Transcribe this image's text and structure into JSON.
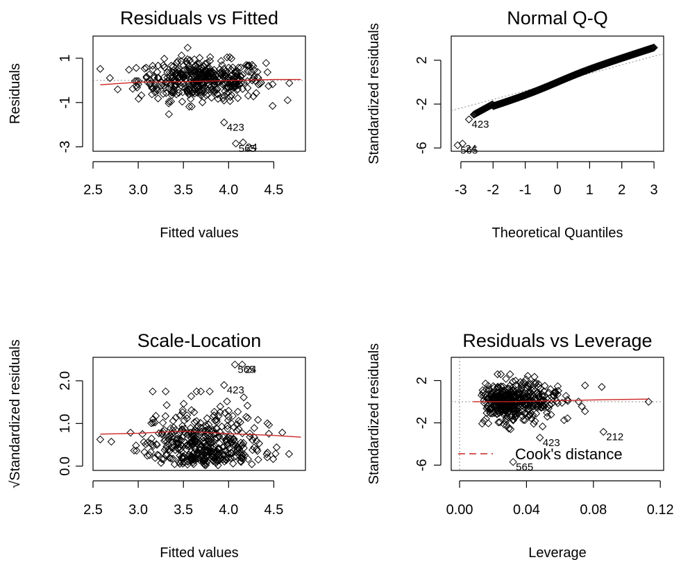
{
  "colors": {
    "smooth_line": "#cc2222",
    "ref_line": "#888888",
    "points": "#000000"
  },
  "chart_data": [
    {
      "id": "residuals-vs-fitted",
      "type": "scatter",
      "title": "Residuals vs Fitted",
      "xlabel": "Fitted values",
      "ylabel": "Residuals",
      "xlim": [
        2.5,
        4.85
      ],
      "ylim": [
        -3.2,
        2.0
      ],
      "xticks": [
        2.5,
        3.0,
        3.5,
        4.0,
        4.5
      ],
      "xtick_labels": [
        "2.5",
        "3.0",
        "3.5",
        "4.0",
        "4.5"
      ],
      "yticks": [
        1,
        -1,
        -3
      ],
      "ytick_labels": [
        "1",
        "-1",
        "-3"
      ],
      "ref_line": {
        "y": 0,
        "style": "dotted"
      },
      "smooth_line": [
        [
          2.58,
          -0.2
        ],
        [
          3.0,
          -0.08
        ],
        [
          3.5,
          -0.06
        ],
        [
          4.0,
          -0.01
        ],
        [
          4.5,
          0.04
        ],
        [
          4.8,
          0.04
        ]
      ],
      "labeled_points": [
        {
          "x": 3.95,
          "y": -1.9,
          "label": "423"
        },
        {
          "x": 4.08,
          "y": -2.85,
          "label": "565"
        },
        {
          "x": 4.16,
          "y": -2.8,
          "label": "24"
        }
      ]
    },
    {
      "id": "normal-qq",
      "type": "scatter",
      "title": "Normal Q-Q",
      "xlabel": "Theoretical Quantiles",
      "ylabel": "Standardized residuals",
      "xlim": [
        -3.3,
        3.3
      ],
      "ylim": [
        -6.3,
        4.2
      ],
      "xticks": [
        -3,
        -2,
        -1,
        0,
        1,
        2,
        3
      ],
      "xtick_labels": [
        "-3",
        "-2",
        "-1",
        "0",
        "1",
        "2",
        "3"
      ],
      "yticks": [
        2,
        -2,
        -6
      ],
      "ytick_labels": [
        "2",
        "-2",
        "-6"
      ],
      "ref_line": {
        "points": [
          [
            -3.3,
            -2.6
          ],
          [
            3.3,
            2.6
          ]
        ],
        "style": "dotted"
      },
      "labeled_points": [
        {
          "x": -2.75,
          "y": -3.4,
          "label": "423"
        },
        {
          "x": -2.95,
          "y": -5.6,
          "label": "24"
        },
        {
          "x": -3.1,
          "y": -5.75,
          "label": "565"
        }
      ]
    },
    {
      "id": "scale-location",
      "type": "scatter",
      "title": "Scale-Location",
      "xlabel": "Fitted values",
      "ylabel": "√Standardized residuals",
      "xlim": [
        2.5,
        4.85
      ],
      "ylim": [
        -0.1,
        2.55
      ],
      "xticks": [
        2.5,
        3.0,
        3.5,
        4.0,
        4.5
      ],
      "xtick_labels": [
        "2.5",
        "3.0",
        "3.5",
        "4.0",
        "4.5"
      ],
      "yticks": [
        0.0,
        1.0,
        2.0
      ],
      "ytick_labels": [
        "0.0",
        "1.0",
        "2.0"
      ],
      "smooth_line": [
        [
          2.58,
          0.75
        ],
        [
          3.0,
          0.77
        ],
        [
          3.5,
          0.82
        ],
        [
          4.0,
          0.76
        ],
        [
          4.5,
          0.72
        ],
        [
          4.8,
          0.68
        ]
      ],
      "labeled_points": [
        {
          "x": 3.95,
          "y": 1.9,
          "label": "423"
        },
        {
          "x": 4.07,
          "y": 2.38,
          "label": "565"
        },
        {
          "x": 4.15,
          "y": 2.38,
          "label": "24"
        }
      ]
    },
    {
      "id": "residuals-vs-leverage",
      "type": "scatter",
      "title": "Residuals vs Leverage",
      "xlabel": "Leverage",
      "ylabel": "Standardized residuals",
      "xlim": [
        -0.005,
        0.122
      ],
      "ylim": [
        -6.5,
        4.2
      ],
      "xticks": [
        0.0,
        0.04,
        0.08,
        0.12
      ],
      "xtick_labels": [
        "0.00",
        "0.04",
        "0.08",
        "0.12"
      ],
      "yticks": [
        2,
        -2,
        -6
      ],
      "ytick_labels": [
        "2",
        "-2",
        "-6"
      ],
      "ref_line": {
        "y": 0,
        "style": "dotted",
        "x": 0
      },
      "smooth_line": [
        [
          0.008,
          0.0
        ],
        [
          0.03,
          0.0
        ],
        [
          0.06,
          0.1
        ],
        [
          0.09,
          0.2
        ],
        [
          0.113,
          0.25
        ]
      ],
      "legend": {
        "label": "Cook's distance",
        "position": "bottom-left"
      },
      "labeled_points": [
        {
          "x": 0.048,
          "y": -3.4,
          "label": "423"
        },
        {
          "x": 0.086,
          "y": -2.85,
          "label": "212"
        },
        {
          "x": 0.032,
          "y": -5.7,
          "label": "565"
        }
      ]
    }
  ]
}
